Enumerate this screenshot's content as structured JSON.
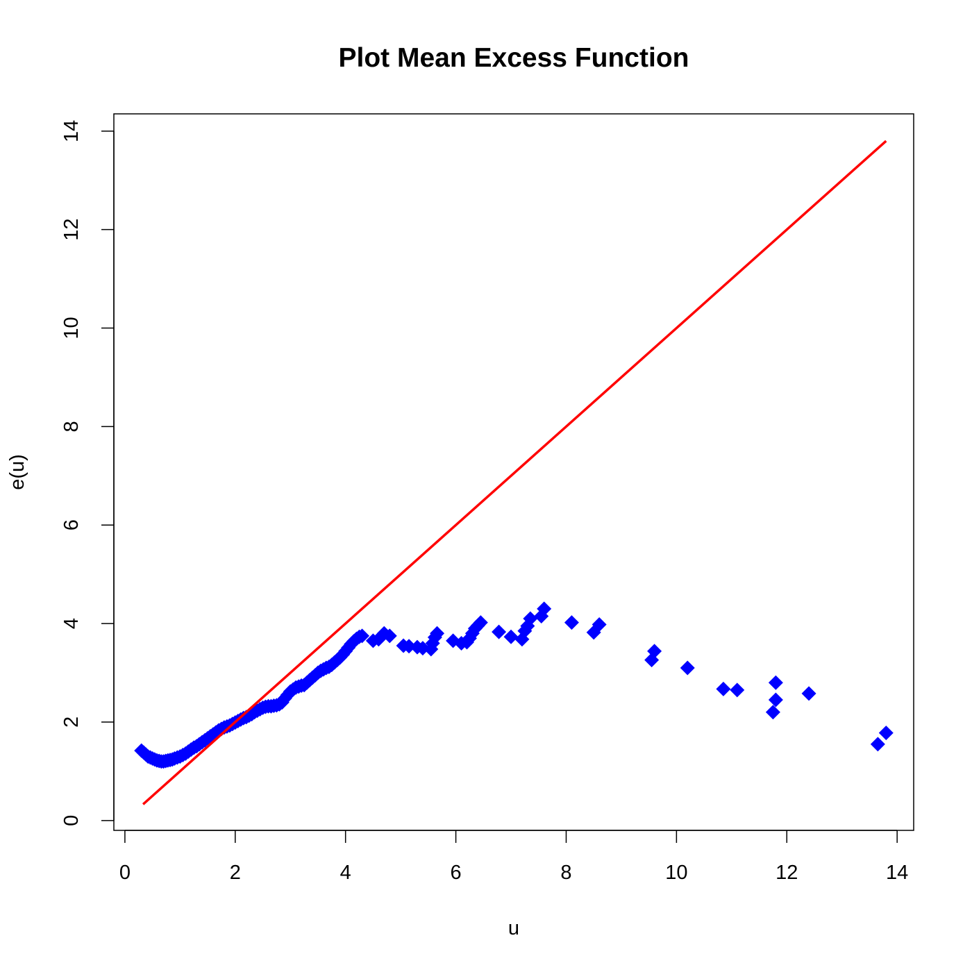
{
  "chart_data": {
    "type": "scatter",
    "title": "Plot Mean Excess Function",
    "xlabel": "u",
    "ylabel": "e(u)",
    "xlim": [
      -0.2,
      14.3
    ],
    "ylim": [
      -0.2,
      14.35
    ],
    "xticks": [
      "0",
      "2",
      "4",
      "6",
      "8",
      "10",
      "12",
      "14"
    ],
    "yticks": [
      "0",
      "2",
      "4",
      "6",
      "8",
      "10",
      "12",
      "14"
    ],
    "grid": false,
    "marker_color": "#0000ff",
    "line_color": "#ff0000",
    "series": [
      {
        "kind": "points",
        "x": [
          0.3,
          0.34,
          0.38,
          0.42,
          0.46,
          0.5,
          0.54,
          0.58,
          0.62,
          0.66,
          0.7,
          0.74,
          0.78,
          0.82,
          0.86,
          0.9,
          0.95,
          1.0,
          1.05,
          1.1,
          1.15,
          1.2,
          1.25,
          1.3,
          1.35,
          1.4,
          1.45,
          1.5,
          1.55,
          1.6,
          1.65,
          1.7,
          1.75,
          1.8,
          1.85,
          1.9,
          1.95,
          2.0,
          2.05,
          2.1,
          2.15,
          2.2,
          2.25,
          2.3,
          2.35,
          2.4,
          2.45,
          2.5,
          2.55,
          2.6,
          2.65,
          2.7,
          2.75,
          2.8,
          2.85,
          2.9,
          2.95,
          3.0,
          3.05,
          3.1,
          3.15,
          3.2,
          3.25,
          3.3,
          3.35,
          3.4,
          3.45,
          3.5,
          3.55,
          3.6,
          3.65,
          3.7,
          3.75,
          3.8,
          3.85,
          3.9,
          3.95,
          4.0,
          4.05,
          4.1,
          4.15,
          4.2,
          4.25,
          4.3,
          4.5,
          4.6,
          4.65,
          4.7,
          4.8,
          5.05,
          5.15,
          5.3,
          5.4,
          5.55,
          5.58,
          5.62,
          5.66,
          5.95,
          6.1,
          6.2,
          6.25,
          6.3,
          6.35,
          6.4,
          6.45,
          6.78,
          7.0,
          7.2,
          7.25,
          7.3,
          7.35,
          7.55,
          7.6,
          8.1,
          8.5,
          8.6,
          9.55,
          9.6,
          10.2,
          10.85,
          11.1,
          11.75,
          11.8,
          11.8,
          12.4,
          13.65,
          13.8
        ],
        "y": [
          1.42,
          1.38,
          1.34,
          1.3,
          1.28,
          1.26,
          1.24,
          1.22,
          1.21,
          1.2,
          1.2,
          1.21,
          1.22,
          1.23,
          1.24,
          1.26,
          1.28,
          1.3,
          1.33,
          1.36,
          1.4,
          1.44,
          1.48,
          1.51,
          1.55,
          1.59,
          1.63,
          1.67,
          1.71,
          1.75,
          1.79,
          1.83,
          1.86,
          1.89,
          1.91,
          1.93,
          1.96,
          1.99,
          2.02,
          2.05,
          2.08,
          2.1,
          2.13,
          2.16,
          2.2,
          2.23,
          2.26,
          2.29,
          2.31,
          2.32,
          2.32,
          2.33,
          2.34,
          2.36,
          2.4,
          2.48,
          2.55,
          2.62,
          2.66,
          2.7,
          2.72,
          2.74,
          2.75,
          2.8,
          2.85,
          2.9,
          2.95,
          3.0,
          3.04,
          3.07,
          3.1,
          3.12,
          3.16,
          3.21,
          3.26,
          3.31,
          3.37,
          3.44,
          3.51,
          3.58,
          3.64,
          3.69,
          3.73,
          3.75,
          3.65,
          3.68,
          3.74,
          3.8,
          3.75,
          3.55,
          3.54,
          3.52,
          3.5,
          3.48,
          3.6,
          3.72,
          3.8,
          3.65,
          3.6,
          3.62,
          3.7,
          3.8,
          3.9,
          3.96,
          4.02,
          3.83,
          3.73,
          3.68,
          3.85,
          3.95,
          4.1,
          4.15,
          4.3,
          4.02,
          3.82,
          3.98,
          3.26,
          3.44,
          3.1,
          2.67,
          2.65,
          2.2,
          2.45,
          2.8,
          2.58,
          1.55,
          1.78
        ]
      },
      {
        "kind": "line",
        "x": [
          0.33,
          13.8
        ],
        "y": [
          0.33,
          13.8
        ]
      }
    ]
  }
}
